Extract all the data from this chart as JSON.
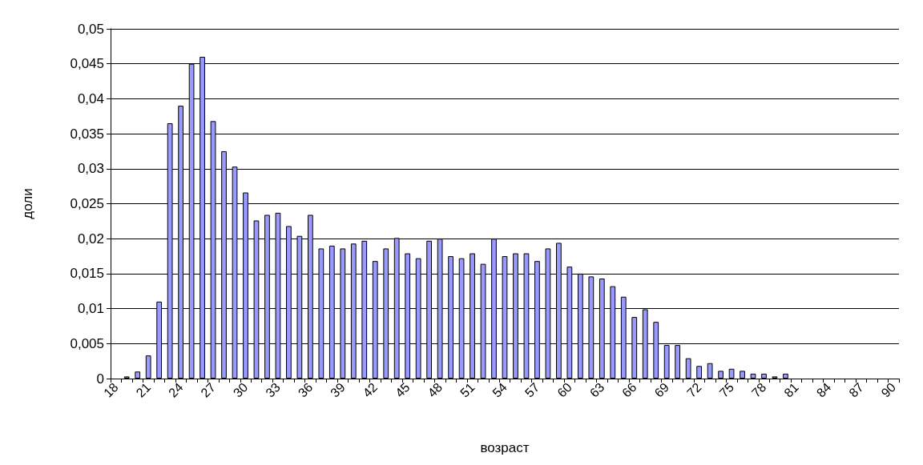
{
  "chart_data": {
    "type": "bar",
    "xlabel": "возраст",
    "ylabel": "доли",
    "categories": [
      "18",
      null,
      null,
      "21",
      null,
      null,
      "24",
      null,
      null,
      "27",
      null,
      null,
      "30",
      null,
      null,
      "33",
      null,
      null,
      "36",
      null,
      null,
      "39",
      null,
      null,
      "42",
      null,
      null,
      "45",
      null,
      null,
      "48",
      null,
      null,
      "51",
      null,
      null,
      "54",
      null,
      null,
      "57",
      null,
      null,
      "60",
      null,
      null,
      "63",
      null,
      null,
      "66",
      null,
      null,
      "69",
      null,
      null,
      "72",
      null,
      null,
      "75",
      null,
      null,
      "78",
      null,
      null,
      "81",
      null,
      null,
      "84",
      null,
      null,
      "87",
      null,
      null,
      "90"
    ],
    "values": [
      0,
      0.0003,
      0.001,
      0.0033,
      0.011,
      0.0365,
      0.039,
      0.045,
      0.046,
      0.0368,
      0.0325,
      0.0303,
      0.0266,
      0.0226,
      0.0234,
      0.0237,
      0.0218,
      0.0204,
      0.0234,
      0.0186,
      0.019,
      0.0186,
      0.0193,
      0.0197,
      0.0168,
      0.0186,
      0.0201,
      0.0179,
      0.0172,
      0.0197,
      0.02,
      0.0175,
      0.0172,
      0.0179,
      0.0164,
      0.02,
      0.0175,
      0.0179,
      0.0179,
      0.0168,
      0.0186,
      0.0194,
      0.016,
      0.015,
      0.0146,
      0.0143,
      0.0132,
      0.0117,
      0.0088,
      0.0099,
      0.0081,
      0.0048,
      0.0048,
      0.0029,
      0.0018,
      0.0022,
      0.0011,
      0.0014,
      0.0011,
      0.0007,
      0.0007,
      0.0003,
      0.0007,
      0,
      0,
      0,
      0,
      0,
      0,
      0,
      0,
      0,
      0
    ],
    "color": "#9999ff",
    "ylim": [
      0,
      0.05
    ],
    "yticks": [
      0,
      {
        "value": 0.005,
        "label": "0,005"
      },
      {
        "value": 0.01,
        "label": "0,01"
      },
      {
        "value": 0.015,
        "label": "0,015"
      },
      {
        "value": 0.02,
        "label": "0,02"
      },
      {
        "value": 0.025,
        "label": "0,025"
      },
      {
        "value": 0.03,
        "label": "0,03"
      },
      {
        "value": 0.035,
        "label": "0,035"
      },
      {
        "value": 0.04,
        "label": "0,04"
      },
      {
        "value": 0.045,
        "label": "0,045"
      },
      {
        "value": 0.05,
        "label": "0,05"
      }
    ],
    "grid": "y"
  }
}
